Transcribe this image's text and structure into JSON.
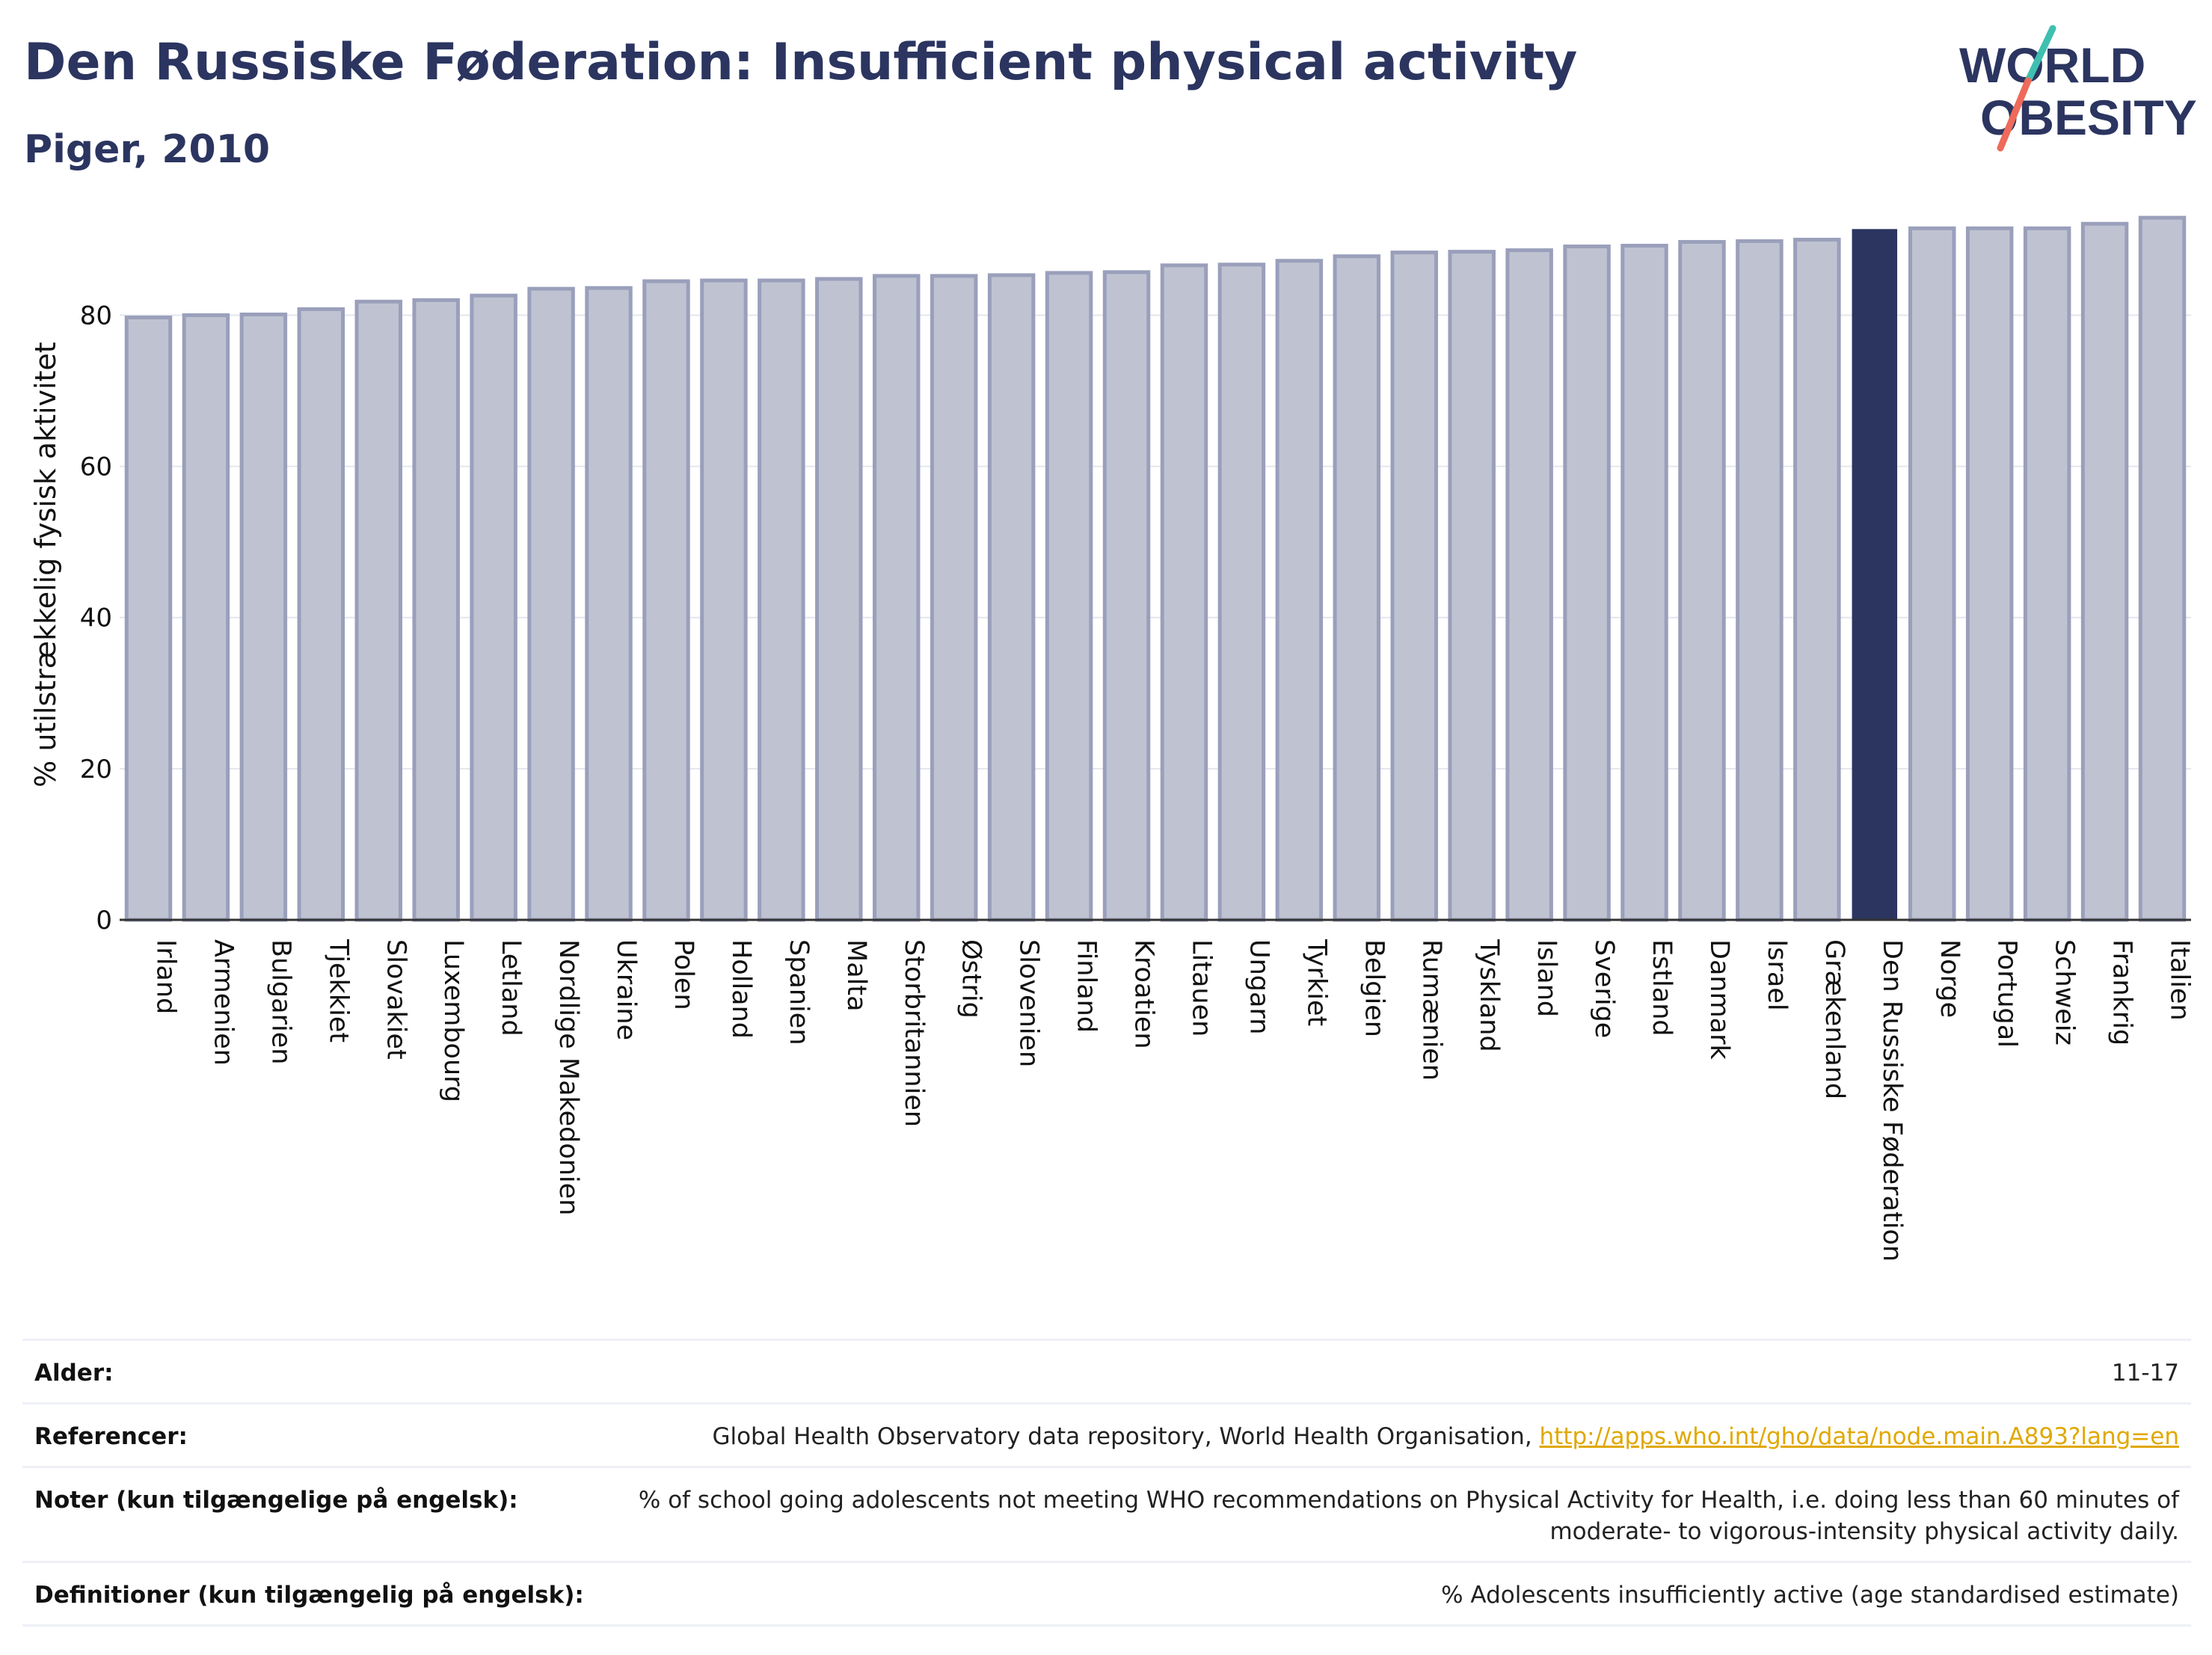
{
  "header": {
    "title": "Den Russiske Føderation: Insufficient physical activity",
    "subtitle": "Piger, 2010"
  },
  "logo": {
    "line1": "WORLD",
    "line2": "OBESITY",
    "colors": {
      "text": "#2b3560",
      "slash_teal": "#3fbfb0",
      "slash_coral": "#ee6a5a"
    }
  },
  "chart_data": {
    "type": "bar",
    "title": "Den Russiske Føderation: Insufficient physical activity",
    "subtitle": "Piger, 2010",
    "ylabel": "% utilstrækkelig fysisk aktivitet",
    "xlabel": "",
    "ylim": [
      0,
      94
    ],
    "yticks": [
      0,
      20,
      40,
      60,
      80
    ],
    "grid": true,
    "highlight": "Den Russiske Føderation",
    "colors": {
      "bar": "#bfc3d1",
      "bar_edge": "#9a9fbb",
      "highlight": "#2b3560"
    },
    "categories": [
      "Irland",
      "Armenien",
      "Bulgarien",
      "Tjekkiet",
      "Slovakiet",
      "Luxembourg",
      "Letland",
      "Nordlige Makedonien",
      "Ukraine",
      "Polen",
      "Holland",
      "Spanien",
      "Malta",
      "Storbritannien",
      "Østrig",
      "Slovenien",
      "Finland",
      "Kroatien",
      "Litauen",
      "Ungarn",
      "Tyrkiet",
      "Belgien",
      "Rumænien",
      "Tyskland",
      "Island",
      "Sverige",
      "Estland",
      "Danmark",
      "Israel",
      "Grækenland",
      "Den Russiske Føderation",
      "Norge",
      "Portugal",
      "Schweiz",
      "Frankrig",
      "Italien"
    ],
    "values": [
      79.7,
      80.0,
      80.1,
      80.8,
      81.8,
      82.0,
      82.6,
      83.5,
      83.6,
      84.5,
      84.6,
      84.6,
      84.8,
      85.2,
      85.2,
      85.3,
      85.6,
      85.7,
      86.6,
      86.7,
      87.2,
      87.8,
      88.3,
      88.4,
      88.6,
      89.1,
      89.2,
      89.7,
      89.8,
      90.0,
      91.3,
      91.5,
      91.5,
      91.5,
      92.1,
      92.9
    ]
  },
  "info": {
    "rows": [
      {
        "label": "Alder:",
        "value": "11-17"
      },
      {
        "label": "Referencer:",
        "value": "Global Health Observatory data repository, World Health Organisation, ",
        "link": "http://apps.who.int/gho/data/node.main.A893?lang=en"
      },
      {
        "label": "Noter (kun tilgængelige på engelsk):",
        "value": "% of school going adolescents not meeting WHO recommendations on Physical Activity for Health, i.e. doing less than 60 minutes of moderate- to vigorous-intensity physical activity daily."
      },
      {
        "label": "Definitioner (kun tilgængelig på engelsk):",
        "value": "% Adolescents insufficiently active (age standardised estimate)"
      }
    ]
  }
}
